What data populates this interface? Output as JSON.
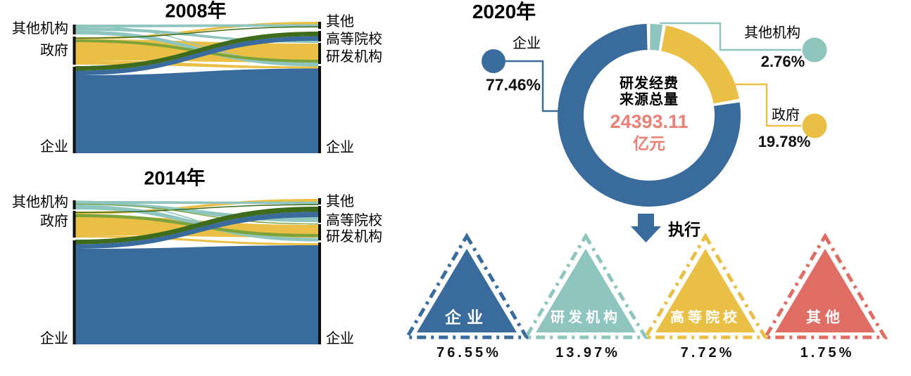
{
  "palette": {
    "blue": "#3a6b9d",
    "teal": "#8ec5bf",
    "yellow": "#eabf46",
    "olive": "#7da33c",
    "dark_green": "#3e6b1c",
    "salmon": "#ee7f74",
    "red": "#e06d63",
    "ink": "#111111"
  },
  "sankeys": [
    {
      "title": "2008年",
      "left_labels": [
        "其他机构",
        "政府",
        "企业"
      ],
      "right_labels": [
        "其他",
        "高等院校",
        "研发机构",
        "企业"
      ]
    },
    {
      "title": "2014年",
      "left_labels": [
        "其他机构",
        "政府",
        "企业"
      ],
      "right_labels": [
        "其他",
        "高等院校",
        "研发机构",
        "企业"
      ]
    }
  ],
  "donut": {
    "title": "2020年",
    "center": {
      "line1": "研发经费",
      "line2": "来源总量",
      "value": "24393.11",
      "unit": "亿元"
    },
    "callouts": [
      {
        "label": "企业",
        "pct": "77.46%"
      },
      {
        "label": "其他机构",
        "pct": "2.76%"
      },
      {
        "label": "政府",
        "pct": "19.78%"
      }
    ]
  },
  "execute": {
    "arrow_label": "执行",
    "items": [
      {
        "label": "企业",
        "pct": "76.55%"
      },
      {
        "label": "研发机构",
        "pct": "13.97%"
      },
      {
        "label": "高等院校",
        "pct": "7.72%"
      },
      {
        "label": "其他",
        "pct": "1.75%"
      }
    ]
  },
  "chart_data": [
    {
      "type": "sankey",
      "title": "2008年",
      "left_nodes": [
        "其他机构",
        "政府",
        "企业"
      ],
      "right_nodes": [
        "其他",
        "高等院校",
        "研发机构",
        "企业"
      ],
      "note": "flow magnitudes not labeled in figure; 企业 is the dominant source and target, 政府 flows mainly to 研发机构"
    },
    {
      "type": "sankey",
      "title": "2014年",
      "left_nodes": [
        "其他机构",
        "政府",
        "企业"
      ],
      "right_nodes": [
        "其他",
        "高等院校",
        "研发机构",
        "企业"
      ],
      "note": "flow magnitudes not labeled in figure; structure similar to 2008"
    },
    {
      "type": "pie",
      "subtype": "donut",
      "title": "2020年",
      "center_label": "研发经费来源总量",
      "center_value": 24393.11,
      "center_unit": "亿元",
      "labels": [
        "其他机构",
        "政府",
        "企业"
      ],
      "values": [
        2.76,
        19.78,
        77.46
      ],
      "unit": "%",
      "colors": [
        "teal",
        "yellow",
        "blue"
      ],
      "legend_position": "callouts"
    },
    {
      "type": "bar",
      "subtype": "triangle-pictogram",
      "title": "执行",
      "categories": [
        "企业",
        "研发机构",
        "高等院校",
        "其他"
      ],
      "values": [
        76.55,
        13.97,
        7.72,
        1.75
      ],
      "unit": "%",
      "colors": [
        "blue",
        "teal",
        "yellow",
        "red"
      ]
    }
  ]
}
